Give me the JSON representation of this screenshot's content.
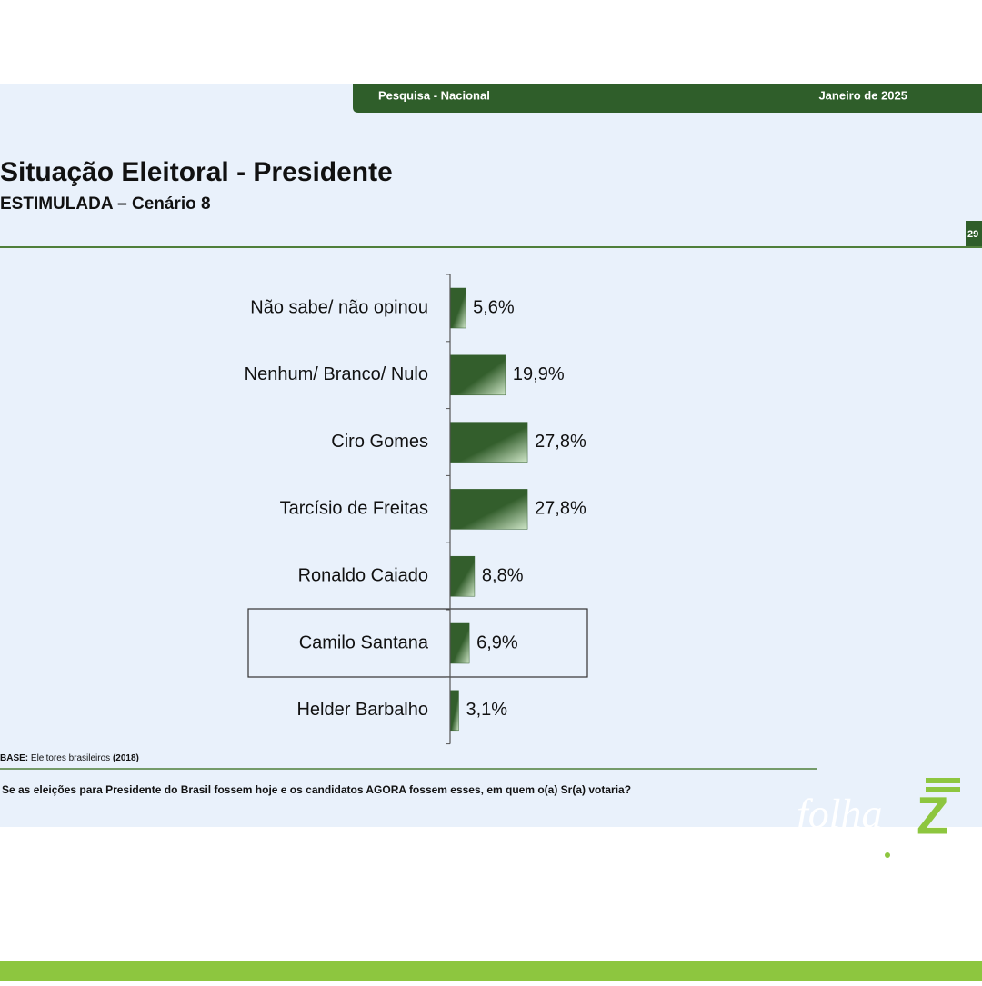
{
  "header": {
    "left": "Pesquisa - Nacional",
    "right": "Janeiro de 2025",
    "page": "29"
  },
  "chart_data": {
    "type": "bar",
    "orientation": "horizontal",
    "title": "Situação Eleitoral - Presidente",
    "subtitle": "ESTIMULADA – Cenário 8",
    "categories": [
      "Não sabe/ não opinou",
      "Nenhum/ Branco/ Nulo",
      "Ciro Gomes",
      "Tarcísio de Freitas",
      "Ronaldo Caiado",
      "Camilo Santana",
      "Helder Barbalho"
    ],
    "values": [
      5.6,
      19.9,
      27.8,
      27.8,
      8.8,
      6.9,
      3.1
    ],
    "value_labels": [
      "5,6%",
      "19,9%",
      "27,8%",
      "27,8%",
      "8,8%",
      "6,9%",
      "3,1%"
    ],
    "color": "#335e2c",
    "highlight": 5
  },
  "footer": {
    "base_label": "BASE:",
    "base_text": "Eleitores brasileiros",
    "base_year": "(2018)",
    "question": "Se as eleições para Presidente do Brasil fossem hoje e os candidatos AGORA fossem esses, em quem o(a) Sr(a) votaria?"
  },
  "logo": {
    "word": "folha",
    "letter": "Z"
  }
}
